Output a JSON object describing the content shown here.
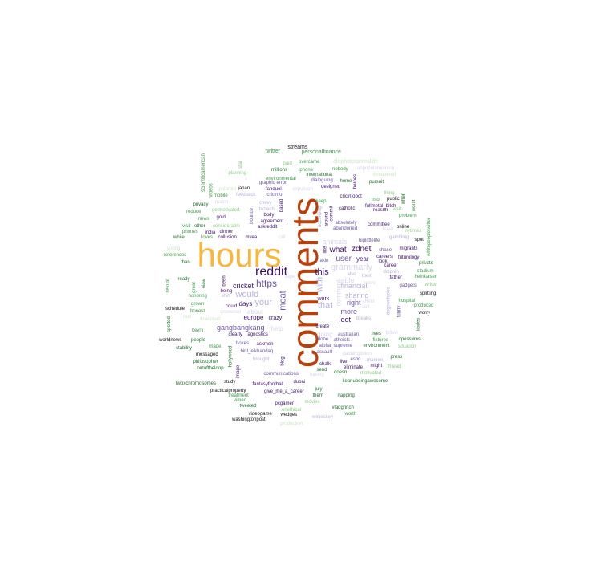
{
  "colors": {
    "orange": "#F5B642",
    "rust": "#B8400C",
    "purple_dark": "#3F0F6B",
    "purple": "#6D55A0",
    "purple_light": "#B7B0D6",
    "purple_pale": "#D8D5EA",
    "green_dark": "#1F6E2B",
    "green": "#3C9A47",
    "green_light": "#8CCB84",
    "green_pale": "#C9E7C1",
    "black": "#111111"
  },
  "words": [
    {
      "text": "hours",
      "color": "orange"
    },
    {
      "text": "comments",
      "color": "rust"
    },
    {
      "text": "reddit",
      "color": "purple_dark"
    },
    {
      "text": "https",
      "color": "purple"
    },
    {
      "text": "meat",
      "color": "purple"
    },
    {
      "text": "your",
      "color": "purple_light"
    },
    {
      "text": "would",
      "color": "purple_light"
    },
    {
      "text": "that",
      "color": "purple_light"
    },
    {
      "text": "with",
      "color": "purple_light"
    },
    {
      "text": "this",
      "color": "purple_dark"
    },
    {
      "text": "what",
      "color": "purple_dark"
    },
    {
      "text": "user",
      "color": "purple"
    },
    {
      "text": "zdnet",
      "color": "purple_dark"
    },
    {
      "text": "grammarly",
      "color": "purple_pale"
    },
    {
      "text": "animals",
      "color": "purple_pale"
    },
    {
      "text": "financial",
      "color": "purple_light"
    },
    {
      "text": "sharing",
      "color": "purple_light"
    },
    {
      "text": "table",
      "color": "purple_pale"
    },
    {
      "text": "right",
      "color": "purple"
    },
    {
      "text": "more",
      "color": "purple"
    },
    {
      "text": "loot",
      "color": "purple_dark"
    },
    {
      "text": "year",
      "color": "purple_dark"
    },
    {
      "text": "cricket",
      "color": "purple_dark"
    },
    {
      "text": "days",
      "color": "purple_dark"
    },
    {
      "text": "europe",
      "color": "purple_dark"
    },
    {
      "text": "about",
      "color": "purple_pale"
    },
    {
      "text": "crazy",
      "color": "purple_dark"
    },
    {
      "text": "gangbangkang",
      "color": "purple"
    },
    {
      "text": "help",
      "color": "purple_pale"
    },
    {
      "text": "going",
      "color": "purple_pale"
    },
    {
      "text": "work",
      "color": "purple_dark"
    },
    {
      "text": "comment",
      "color": "purple_pale"
    },
    {
      "text": "twitter",
      "color": "green"
    },
    {
      "text": "streams",
      "color": "black"
    },
    {
      "text": "personalfinance",
      "color": "green"
    },
    {
      "text": "oldphotosinreallife",
      "color": "green_pale"
    },
    {
      "text": "overcame",
      "color": "green"
    },
    {
      "text": "unpopularopinion",
      "color": "purple_pale"
    },
    {
      "text": "iphone",
      "color": "green"
    },
    {
      "text": "millions",
      "color": "green_dark"
    },
    {
      "text": "nobody",
      "color": "green"
    },
    {
      "text": "international",
      "color": "green_dark"
    },
    {
      "text": "environmental",
      "color": "green"
    },
    {
      "text": "dialoguing",
      "color": "purple"
    },
    {
      "text": "home",
      "color": "green_dark"
    },
    {
      "text": "pursuit",
      "color": "green_dark"
    },
    {
      "text": "designed",
      "color": "purple_dark"
    },
    {
      "text": "scientificamerican",
      "color": "green"
    },
    {
      "text": "videos",
      "color": "green"
    },
    {
      "text": "star",
      "color": "green_light"
    },
    {
      "text": "planning",
      "color": "green_light"
    },
    {
      "text": "japan",
      "color": "black"
    },
    {
      "text": "fanduel",
      "color": "purple_dark"
    },
    {
      "text": "feedback",
      "color": "purple_light"
    },
    {
      "text": "cricinfo",
      "color": "purple"
    },
    {
      "text": "graphic",
      "color": "purple"
    },
    {
      "text": "error",
      "color": "purple"
    },
    {
      "text": "expulsion",
      "color": "purple_pale"
    },
    {
      "text": "mobile",
      "color": "green"
    },
    {
      "text": "privacy",
      "color": "green_dark"
    },
    {
      "text": "news",
      "color": "green"
    },
    {
      "text": "getmotivated",
      "color": "green_light"
    },
    {
      "text": "gold",
      "color": "purple_dark"
    },
    {
      "text": "body",
      "color": "purple_dark"
    },
    {
      "text": "agreement",
      "color": "purple_dark"
    },
    {
      "text": "askreddit",
      "color": "purple_dark"
    },
    {
      "text": "bounce",
      "color": "purple"
    },
    {
      "text": "biotech",
      "color": "purple_light"
    },
    {
      "text": "chevy",
      "color": "purple_light"
    },
    {
      "text": "based",
      "color": "purple_dark"
    },
    {
      "text": "reduce",
      "color": "green"
    },
    {
      "text": "visit",
      "color": "green"
    },
    {
      "text": "other",
      "color": "green_dark"
    },
    {
      "text": "considerable",
      "color": "green_light"
    },
    {
      "text": "phones",
      "color": "green"
    },
    {
      "text": "india",
      "color": "purple_dark"
    },
    {
      "text": "dinner",
      "color": "purple_dark"
    },
    {
      "text": "while",
      "color": "green_dark"
    },
    {
      "text": "loves",
      "color": "green"
    },
    {
      "text": "collusion",
      "color": "purple_dark"
    },
    {
      "text": "mvea",
      "color": "purple_dark"
    },
    {
      "text": "call",
      "color": "purple_pale"
    },
    {
      "text": "young",
      "color": "green_pale"
    },
    {
      "text": "references",
      "color": "green"
    },
    {
      "text": "than",
      "color": "green_dark"
    },
    {
      "text": "ready",
      "color": "green_dark"
    },
    {
      "text": "sexual",
      "color": "green"
    },
    {
      "text": "view",
      "color": "green_dark"
    },
    {
      "text": "great",
      "color": "green"
    },
    {
      "text": "honoring",
      "color": "green"
    },
    {
      "text": "grown",
      "color": "green"
    },
    {
      "text": "schedule",
      "color": "black"
    },
    {
      "text": "honest",
      "color": "green"
    },
    {
      "text": "rest",
      "color": "green_pale"
    },
    {
      "text": "download",
      "color": "green_pale"
    },
    {
      "text": "spotted",
      "color": "green_dark"
    },
    {
      "text": "kevin",
      "color": "green"
    },
    {
      "text": "worldnews",
      "color": "black"
    },
    {
      "text": "people",
      "color": "green_dark"
    },
    {
      "text": "stability",
      "color": "green_dark"
    },
    {
      "text": "made",
      "color": "green"
    },
    {
      "text": "messaged",
      "color": "black"
    },
    {
      "text": "philosopher",
      "color": "green_dark"
    },
    {
      "text": "outoftheloop",
      "color": "green_dark"
    },
    {
      "text": "twoxchromosomes",
      "color": "green_dark"
    },
    {
      "text": "practicalproperty",
      "color": "black"
    },
    {
      "text": "treatment",
      "color": "green"
    },
    {
      "text": "vimeo",
      "color": "green"
    },
    {
      "text": "tweeted",
      "color": "green_dark"
    },
    {
      "text": "videogame",
      "color": "black"
    },
    {
      "text": "washingtonpost",
      "color": "black"
    },
    {
      "text": "study",
      "color": "black"
    },
    {
      "text": "hollywood",
      "color": "green_dark"
    },
    {
      "text": "image",
      "color": "purple_dark"
    },
    {
      "text": "been",
      "color": "purple_dark"
    },
    {
      "text": "being",
      "color": "purple_dark"
    },
    {
      "text": "shin",
      "color": "purple_light"
    },
    {
      "text": "could",
      "color": "purple_dark"
    },
    {
      "text": "answered",
      "color": "purple_pale"
    },
    {
      "text": "clearly",
      "color": "purple_dark"
    },
    {
      "text": "agnostics",
      "color": "purple_dark"
    },
    {
      "text": "boxes",
      "color": "purple"
    },
    {
      "text": "askmen",
      "color": "purple_dark"
    },
    {
      "text": "bint_elkhandaq",
      "color": "purple"
    },
    {
      "text": "brought",
      "color": "purple_light"
    },
    {
      "text": "blog",
      "color": "purple_dark"
    },
    {
      "text": "communications",
      "color": "purple"
    },
    {
      "text": "fantasyfootball",
      "color": "purple_dark"
    },
    {
      "text": "dubai",
      "color": "purple_dark"
    },
    {
      "text": "give_me_a_career",
      "color": "purple_dark"
    },
    {
      "text": "pcgamer",
      "color": "purple_dark"
    },
    {
      "text": "unethical",
      "color": "green_light"
    },
    {
      "text": "wedges",
      "color": "black"
    },
    {
      "text": "production",
      "color": "green_pale"
    },
    {
      "text": "winleskey",
      "color": "purple_light"
    },
    {
      "text": "worth",
      "color": "green"
    },
    {
      "text": "vladgrinch",
      "color": "green_dark"
    },
    {
      "text": "napping",
      "color": "green_dark"
    },
    {
      "text": "them",
      "color": "green_dark"
    },
    {
      "text": "july",
      "color": "green_dark"
    },
    {
      "text": "movies",
      "color": "green_light"
    },
    {
      "text": "keanubeingawesome",
      "color": "green_dark"
    },
    {
      "text": "motivated",
      "color": "green_light"
    },
    {
      "text": "doesn",
      "color": "green_dark"
    },
    {
      "text": "eliminate",
      "color": "purple_dark"
    },
    {
      "text": "live",
      "color": "purple_dark"
    },
    {
      "text": "might",
      "color": "purple_dark"
    },
    {
      "text": "espn",
      "color": "purple"
    },
    {
      "text": "manner",
      "color": "purple_light"
    },
    {
      "text": "chalk",
      "color": "purple_dark"
    },
    {
      "text": "send",
      "color": "green_dark"
    },
    {
      "text": "having",
      "color": "purple_pale"
    },
    {
      "text": "dabbingdukes",
      "color": "purple_pale"
    },
    {
      "text": "assault",
      "color": "purple"
    },
    {
      "text": "alpha_supreme",
      "color": "purple"
    },
    {
      "text": "environment",
      "color": "green_dark"
    },
    {
      "text": "alone",
      "color": "purple"
    },
    {
      "text": "atheists",
      "color": "purple"
    },
    {
      "text": "australian",
      "color": "purple"
    },
    {
      "text": "create",
      "color": "purple_dark"
    },
    {
      "text": "fixtures",
      "color": "green"
    },
    {
      "text": "lives",
      "color": "green_dark"
    },
    {
      "text": "opossums",
      "color": "green_dark"
    },
    {
      "text": "press",
      "color": "green_dark"
    },
    {
      "text": "thread",
      "color": "green_light"
    },
    {
      "text": "situation",
      "color": "green_light"
    },
    {
      "text": "trades",
      "color": "green_dark"
    },
    {
      "text": "whitepeopletwitter",
      "color": "green"
    },
    {
      "text": "stadium",
      "color": "green"
    },
    {
      "text": "heinkaiser",
      "color": "green"
    },
    {
      "text": "splitting",
      "color": "black"
    },
    {
      "text": "writer",
      "color": "green_light"
    },
    {
      "text": "produced",
      "color": "green"
    },
    {
      "text": "worry",
      "color": "black"
    },
    {
      "text": "private",
      "color": "green_dark"
    },
    {
      "text": "futurology",
      "color": "purple_dark"
    },
    {
      "text": "migrants",
      "color": "purple_dark"
    },
    {
      "text": "spot",
      "color": "black"
    },
    {
      "text": "online",
      "color": "black"
    },
    {
      "text": "nytimes",
      "color": "green_light"
    },
    {
      "text": "problem",
      "color": "green"
    },
    {
      "text": "walk",
      "color": "green_light"
    },
    {
      "text": "gambling",
      "color": "purple_light"
    },
    {
      "text": "funny",
      "color": "purple"
    },
    {
      "text": "hospital",
      "color": "green"
    },
    {
      "text": "gadgets",
      "color": "purple"
    },
    {
      "text": "father",
      "color": "purple_dark"
    },
    {
      "text": "career",
      "color": "purple_dark"
    },
    {
      "text": "dolphin",
      "color": "purple_light"
    },
    {
      "text": "look",
      "color": "purple_dark"
    },
    {
      "text": "careers",
      "color": "purple_dark"
    },
    {
      "text": "chase",
      "color": "purple"
    },
    {
      "text": "committee",
      "color": "purple_dark"
    },
    {
      "text": "biglittlelife",
      "color": "purple"
    },
    {
      "text": "absolutely",
      "color": "purple"
    },
    {
      "text": "abandoned",
      "color": "purple"
    },
    {
      "text": "catholic",
      "color": "purple_dark"
    },
    {
      "text": "fullmetal_bitch",
      "color": "purple_dark"
    },
    {
      "text": "cricinfobot",
      "color": "purple_dark"
    },
    {
      "text": "into",
      "color": "green"
    },
    {
      "text": "public",
      "color": "black"
    },
    {
      "text": "reason",
      "color": "purple_dark"
    },
    {
      "text": "thing",
      "color": "green_light"
    },
    {
      "text": "worst",
      "color": "green_dark"
    },
    {
      "text": "when",
      "color": "green_dark"
    },
    {
      "text": "keep",
      "color": "green"
    },
    {
      "text": "heroes",
      "color": "purple_dark"
    },
    {
      "text": "threatened",
      "color": "green_pale"
    },
    {
      "text": "according",
      "color": "purple_light"
    },
    {
      "text": "around",
      "color": "purple_dark"
    },
    {
      "text": "commit",
      "color": "purple_dark"
    },
    {
      "text": "akin",
      "color": "purple"
    },
    {
      "text": "also",
      "color": "purple_light"
    },
    {
      "text": "their",
      "color": "purple_light"
    },
    {
      "text": "chest",
      "color": "purple_pale"
    },
    {
      "text": "breaks",
      "color": "purple_light"
    },
    {
      "text": "dogswithjobs",
      "color": "purple_light"
    },
    {
      "text": "have",
      "color": "purple_pale"
    },
    {
      "text": "follow",
      "color": "purple_pale"
    },
    {
      "text": "soft",
      "color": "purple_pale"
    },
    {
      "text": "match",
      "color": "purple_pale"
    },
    {
      "text": "like",
      "color": "purple_dark"
    },
    {
      "text": "vape",
      "color": "purple_pale"
    },
    {
      "text": "wave",
      "color": "purple_pale"
    },
    {
      "text": "paid",
      "color": "green_light"
    },
    {
      "text": "polaroid",
      "color": "green_pale"
    }
  ]
}
